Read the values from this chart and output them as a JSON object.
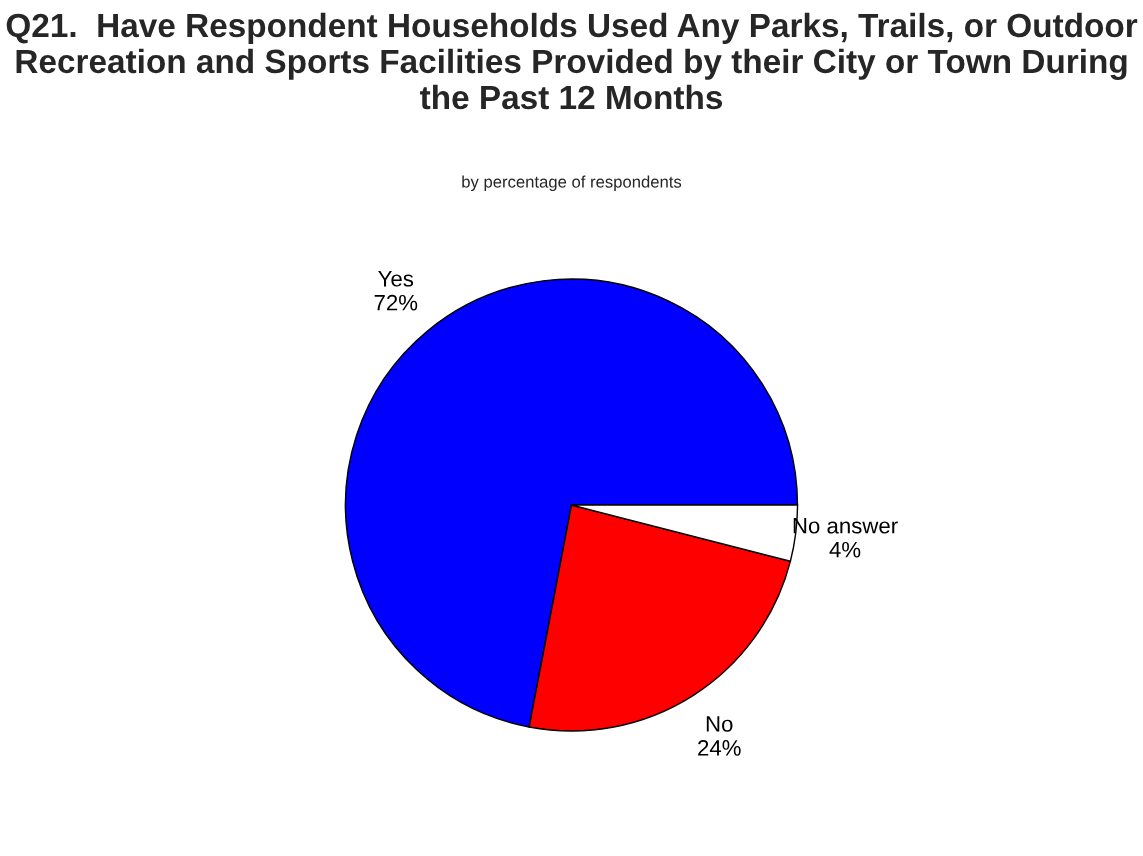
{
  "chart_data": {
    "type": "pie",
    "title": "Q21.  Have Respondent Households Used Any Parks, Trails, or Outdoor Recreation and Sports Facilities Provided by their City or Town During the Past 12 Months",
    "subtitle": "by percentage of respondents",
    "categories": [
      "Yes",
      "No",
      "No answer"
    ],
    "values": [
      72,
      24,
      4
    ],
    "value_labels": [
      "72%",
      "24%",
      "4%"
    ],
    "colors": [
      "#0000ff",
      "#ff0000",
      "#ffffff"
    ]
  }
}
